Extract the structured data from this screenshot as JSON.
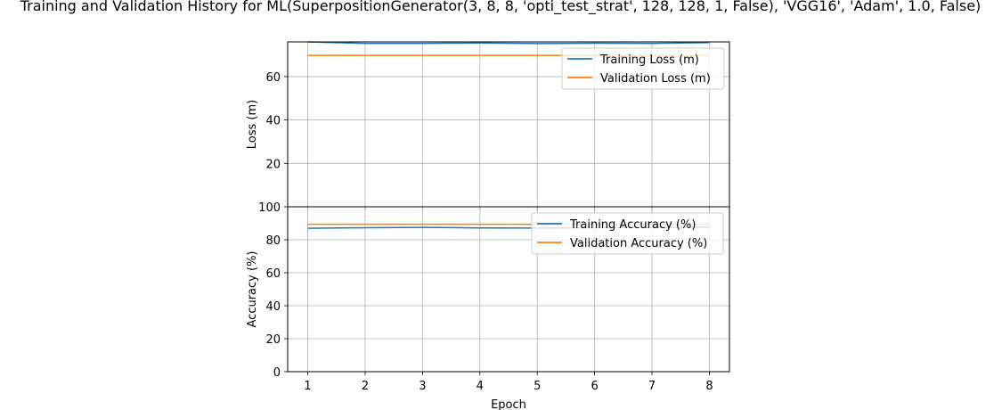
{
  "figure": {
    "title": "Training and Validation History for ML(SuperpositionGenerator(3, 8, 8, 'opti_test_strat', 128, 128, 1, False), 'VGG16', 'Adam', 1.0, False)"
  },
  "colors": {
    "training": "#1f77b4",
    "validation": "#ff7f0e",
    "grid": "#b0b0b0",
    "axes": "#000000"
  },
  "chart_data": [
    {
      "type": "line",
      "id": "loss",
      "ylabel": "Loss (m)",
      "xlabel": "",
      "x": [
        1,
        2,
        3,
        4,
        5,
        6,
        7,
        8
      ],
      "xlim": [
        0.65,
        8.35
      ],
      "ylim": [
        0,
        76
      ],
      "yticks": [
        20,
        40,
        60
      ],
      "grid": true,
      "legend_placement": "upper right",
      "series": [
        {
          "name": "Training Loss (m)",
          "color": "#1f77b4",
          "values": [
            76.0,
            75.3,
            75.3,
            75.5,
            75.2,
            75.4,
            75.3,
            75.7
          ]
        },
        {
          "name": "Validation Loss (m)",
          "color": "#ff7f0e",
          "values": [
            69.8,
            69.8,
            69.8,
            69.8,
            69.8,
            69.8,
            69.8,
            69.8
          ]
        }
      ]
    },
    {
      "type": "line",
      "id": "accuracy",
      "ylabel": "Accuracy (%)",
      "xlabel": "Epoch",
      "x": [
        1,
        2,
        3,
        4,
        5,
        6,
        7,
        8
      ],
      "xlim": [
        0.65,
        8.35
      ],
      "ylim": [
        0,
        100
      ],
      "yticks": [
        0,
        20,
        40,
        60,
        80,
        100
      ],
      "xticks": [
        1,
        2,
        3,
        4,
        5,
        6,
        7,
        8
      ],
      "grid": true,
      "legend_placement": "upper right",
      "series": [
        {
          "name": "Training Accuracy (%)",
          "color": "#1f77b4",
          "values": [
            87.0,
            87.3,
            87.5,
            87.2,
            87.1,
            87.3,
            87.4,
            87.6
          ]
        },
        {
          "name": "Validation Accuracy (%)",
          "color": "#ff7f0e",
          "values": [
            89.4,
            89.4,
            89.4,
            89.4,
            89.4,
            89.4,
            89.4,
            89.4
          ]
        }
      ]
    }
  ]
}
